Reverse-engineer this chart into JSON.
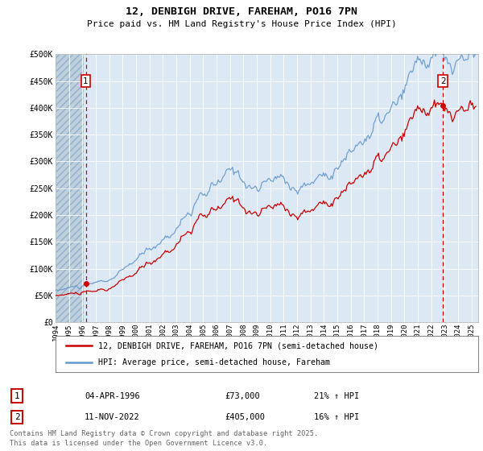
{
  "title": "12, DENBIGH DRIVE, FAREHAM, PO16 7PN",
  "subtitle": "Price paid vs. HM Land Registry's House Price Index (HPI)",
  "bg_color": "#dce9f5",
  "red_line_color": "#cc0000",
  "blue_line_color": "#6699cc",
  "sale1_year": 1996.25,
  "sale1_price": 73000,
  "sale1_label": "1",
  "sale2_year": 2022.87,
  "sale2_price": 405000,
  "sale2_label": "2",
  "ylim": [
    0,
    500000
  ],
  "yticks": [
    0,
    50000,
    100000,
    150000,
    200000,
    250000,
    300000,
    350000,
    400000,
    450000,
    500000
  ],
  "ytick_labels": [
    "£0",
    "£50K",
    "£100K",
    "£150K",
    "£200K",
    "£250K",
    "£300K",
    "£350K",
    "£400K",
    "£450K",
    "£500K"
  ],
  "xlim_start": 1994,
  "xlim_end": 2025.5,
  "legend_line1": "12, DENBIGH DRIVE, FAREHAM, PO16 7PN (semi-detached house)",
  "legend_line2": "HPI: Average price, semi-detached house, Fareham",
  "footer": "Contains HM Land Registry data © Crown copyright and database right 2025.\nThis data is licensed under the Open Government Licence v3.0."
}
